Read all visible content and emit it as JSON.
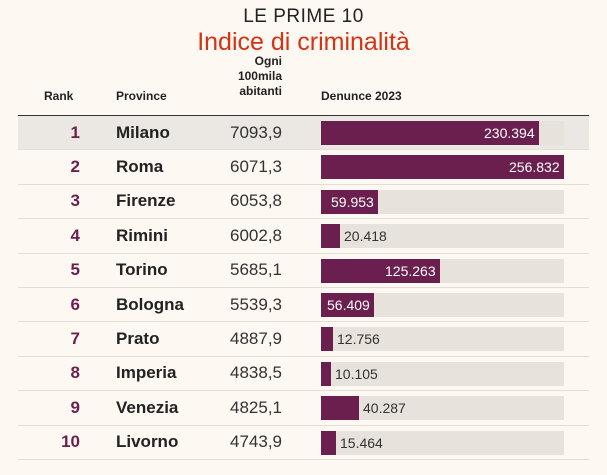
{
  "header": {
    "supertitle": "LE PRIME 10",
    "title": "Indice di criminalità"
  },
  "columns": {
    "rank": "Rank",
    "province": "Province",
    "index_line1": "Ogni",
    "index_line2": "100mila",
    "index_line3": "abitanti",
    "reports": "Denunce 2023"
  },
  "colors": {
    "bar": "#6b1f4f",
    "track": "#e7e2db",
    "title": "#d63214",
    "highlight_row": "#ebe7e2"
  },
  "chart_data": {
    "type": "table",
    "bar_column_max": 256832,
    "rows": [
      {
        "rank": "1",
        "province": "Milano",
        "index": "7093,9",
        "reports": 230394,
        "reports_label": "230.394",
        "highlighted": true
      },
      {
        "rank": "2",
        "province": "Roma",
        "index": "6071,3",
        "reports": 256832,
        "reports_label": "256.832",
        "highlighted": false
      },
      {
        "rank": "3",
        "province": "Firenze",
        "index": "6053,8",
        "reports": 59953,
        "reports_label": "59.953",
        "highlighted": false
      },
      {
        "rank": "4",
        "province": "Rimini",
        "index": "6002,8",
        "reports": 20418,
        "reports_label": "20.418",
        "highlighted": false
      },
      {
        "rank": "5",
        "province": "Torino",
        "index": "5685,1",
        "reports": 125263,
        "reports_label": "125.263",
        "highlighted": false
      },
      {
        "rank": "6",
        "province": "Bologna",
        "index": "5539,3",
        "reports": 56409,
        "reports_label": "56.409",
        "highlighted": false
      },
      {
        "rank": "7",
        "province": "Prato",
        "index": "4887,9",
        "reports": 12756,
        "reports_label": "12.756",
        "highlighted": false
      },
      {
        "rank": "8",
        "province": "Imperia",
        "index": "4838,5",
        "reports": 10105,
        "reports_label": "10.105",
        "highlighted": false
      },
      {
        "rank": "9",
        "province": "Venezia",
        "index": "4825,1",
        "reports": 40287,
        "reports_label": "40.287",
        "highlighted": false
      },
      {
        "rank": "10",
        "province": "Livorno",
        "index": "4743,9",
        "reports": 15464,
        "reports_label": "15.464",
        "highlighted": false
      }
    ]
  }
}
